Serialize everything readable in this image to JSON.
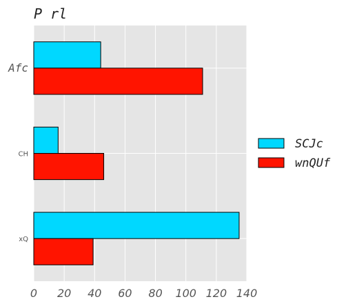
{
  "chart_data": {
    "type": "bar",
    "orientation": "horizontal",
    "title": "P rl",
    "categories": [
      "Afc",
      "CH",
      "xQ"
    ],
    "series": [
      {
        "name": "SCJc",
        "values": [
          44,
          16,
          135
        ],
        "color": "#00d8ff"
      },
      {
        "name": "wnQUf",
        "values": [
          111,
          46,
          39
        ],
        "color": "#ff1400"
      }
    ],
    "xticks": [
      0,
      20,
      40,
      60,
      80,
      100,
      120,
      140
    ],
    "xlim": [
      0,
      140
    ],
    "grid": true,
    "legend_position": "right",
    "background": "#e5e5e5",
    "gridline_color": "#ffffff"
  }
}
